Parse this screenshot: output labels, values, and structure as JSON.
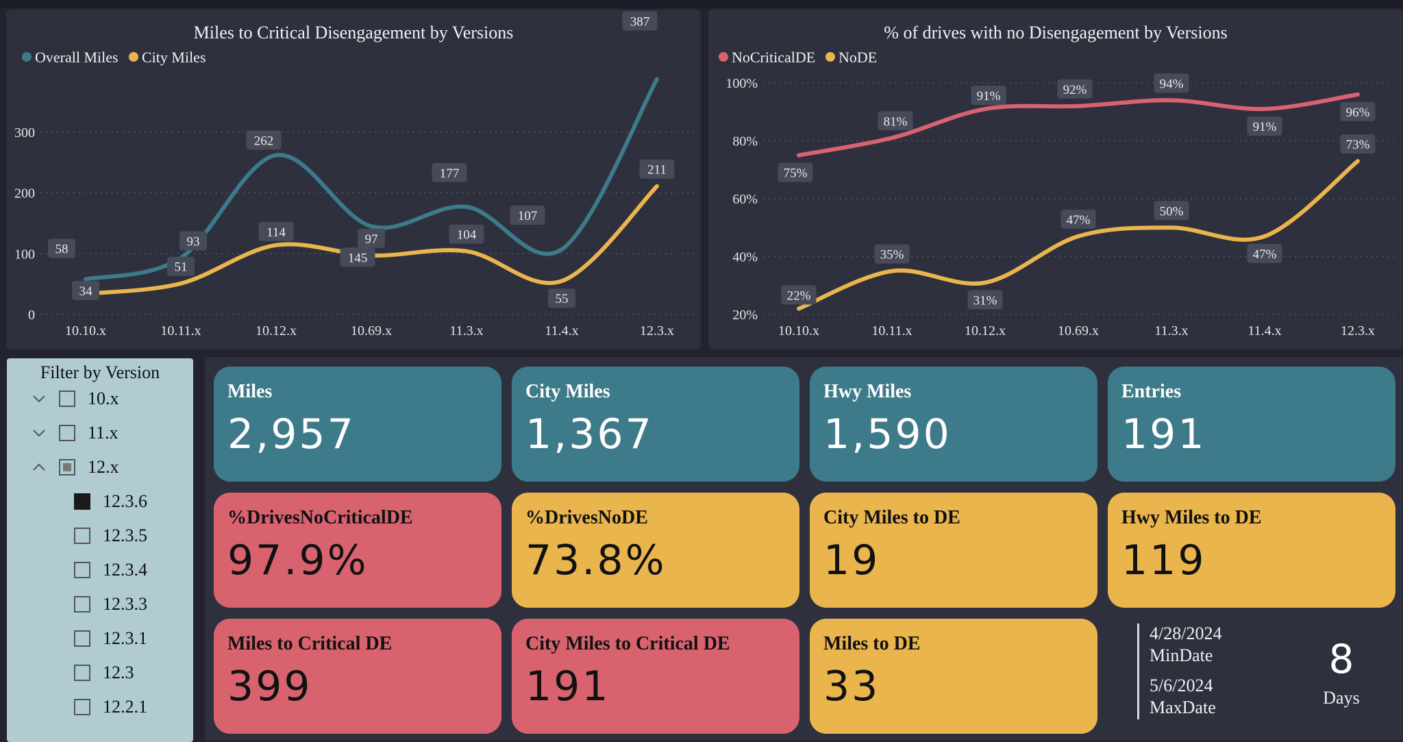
{
  "chart_data": [
    {
      "type": "line",
      "title": "Miles to Critical Disengagement by Versions",
      "categories": [
        "10.10.x",
        "10.11.x",
        "10.12.x",
        "10.69.x",
        "11.3.x",
        "11.4.x",
        "12.3.x"
      ],
      "series": [
        {
          "name": "Overall Miles",
          "color": "#3d7a8a",
          "values": [
            58,
            93,
            262,
            145,
            177,
            107,
            387
          ]
        },
        {
          "name": "City Miles",
          "color": "#ebb54d",
          "values": [
            34,
            51,
            114,
            97,
            104,
            55,
            211
          ]
        }
      ],
      "labels": [
        {
          "series": 0,
          "index": 0,
          "text": "58"
        },
        {
          "series": 1,
          "index": 0,
          "text": "34"
        },
        {
          "series": 0,
          "index": 1,
          "text": "93"
        },
        {
          "series": 1,
          "index": 1,
          "text": "51"
        },
        {
          "series": 0,
          "index": 2,
          "text": "262"
        },
        {
          "series": 1,
          "index": 2,
          "text": "114"
        },
        {
          "series": 0,
          "index": 3,
          "text": "145"
        },
        {
          "series": 1,
          "index": 3,
          "text": "97"
        },
        {
          "series": 0,
          "index": 4,
          "text": "177"
        },
        {
          "series": 1,
          "index": 4,
          "text": "104"
        },
        {
          "series": 0,
          "index": 5,
          "text": "107"
        },
        {
          "series": 1,
          "index": 5,
          "text": "55"
        },
        {
          "series": 0,
          "index": 6,
          "text": "387"
        },
        {
          "series": 1,
          "index": 6,
          "text": "211"
        }
      ],
      "ylim": [
        0,
        400
      ],
      "yticks": [
        0,
        100,
        200,
        300
      ],
      "ytick_labels": [
        "0",
        "100",
        "200",
        "300"
      ],
      "legend": "top-left",
      "grid": true
    },
    {
      "type": "line",
      "title": "% of drives with no Disengagement by Versions",
      "categories": [
        "10.10.x",
        "10.11.x",
        "10.12.x",
        "10.69.x",
        "11.3.x",
        "11.4.x",
        "12.3.x"
      ],
      "series": [
        {
          "name": "NoCriticalDE",
          "color": "#d8636f",
          "values": [
            75,
            81,
            91,
            92,
            94,
            91,
            96
          ]
        },
        {
          "name": "NoDE",
          "color": "#ebb54d",
          "values": [
            22,
            35,
            31,
            47,
            50,
            47,
            73
          ]
        }
      ],
      "labels": [
        {
          "series": 0,
          "index": 0,
          "text": "75%"
        },
        {
          "series": 1,
          "index": 0,
          "text": "22%"
        },
        {
          "series": 0,
          "index": 1,
          "text": "81%"
        },
        {
          "series": 1,
          "index": 1,
          "text": "35%"
        },
        {
          "series": 0,
          "index": 2,
          "text": "91%"
        },
        {
          "series": 1,
          "index": 2,
          "text": "31%"
        },
        {
          "series": 0,
          "index": 3,
          "text": "92%"
        },
        {
          "series": 1,
          "index": 3,
          "text": "47%"
        },
        {
          "series": 0,
          "index": 4,
          "text": "94%"
        },
        {
          "series": 1,
          "index": 4,
          "text": "50%"
        },
        {
          "series": 0,
          "index": 5,
          "text": "91%"
        },
        {
          "series": 1,
          "index": 5,
          "text": "47%"
        },
        {
          "series": 0,
          "index": 6,
          "text": "96%"
        },
        {
          "series": 1,
          "index": 6,
          "text": "73%"
        }
      ],
      "ylim": [
        20,
        100
      ],
      "yticks": [
        20,
        40,
        60,
        80,
        100
      ],
      "ytick_labels": [
        "20%",
        "40%",
        "60%",
        "80%",
        "100%"
      ],
      "legend": "top-left",
      "grid": true
    }
  ],
  "slicer": {
    "title": "Filter by Version",
    "items": [
      {
        "label": "10.x",
        "level": 0,
        "expand": "down",
        "state": "empty"
      },
      {
        "label": "11.x",
        "level": 0,
        "expand": "down",
        "state": "empty"
      },
      {
        "label": "12.x",
        "level": 0,
        "expand": "up",
        "state": "partial"
      },
      {
        "label": "12.3.6",
        "level": 1,
        "state": "filled"
      },
      {
        "label": "12.3.5",
        "level": 1,
        "state": "empty"
      },
      {
        "label": "12.3.4",
        "level": 1,
        "state": "empty"
      },
      {
        "label": "12.3.3",
        "level": 1,
        "state": "empty"
      },
      {
        "label": "12.3.1",
        "level": 1,
        "state": "empty"
      },
      {
        "label": "12.3",
        "level": 1,
        "state": "empty"
      },
      {
        "label": "12.2.1",
        "level": 1,
        "state": "empty"
      }
    ]
  },
  "cards": [
    {
      "label": "Miles",
      "value": "2,957",
      "color": "teal"
    },
    {
      "label": "City Miles",
      "value": "1,367",
      "color": "teal"
    },
    {
      "label": "Hwy Miles",
      "value": "1,590",
      "color": "teal"
    },
    {
      "label": "Entries",
      "value": "191",
      "color": "teal"
    },
    {
      "label": "%DrivesNoCriticalDE",
      "value": "97.9%",
      "color": "red"
    },
    {
      "label": "%DrivesNoDE",
      "value": "73.8%",
      "color": "yellow"
    },
    {
      "label": "City Miles to DE",
      "value": "19",
      "color": "yellow"
    },
    {
      "label": "Hwy Miles to DE",
      "value": "119",
      "color": "yellow"
    },
    {
      "label": "Miles to Critical DE",
      "value": "399",
      "color": "red"
    },
    {
      "label": "City Miles to Critical DE",
      "value": "191",
      "color": "red"
    },
    {
      "label": "Miles to DE",
      "value": "33",
      "color": "yellow"
    }
  ],
  "dates": {
    "min_value": "4/28/2024",
    "min_label": "MinDate",
    "max_value": "5/6/2024",
    "max_label": "MaxDate",
    "days_value": "8",
    "days_label": "Days"
  }
}
